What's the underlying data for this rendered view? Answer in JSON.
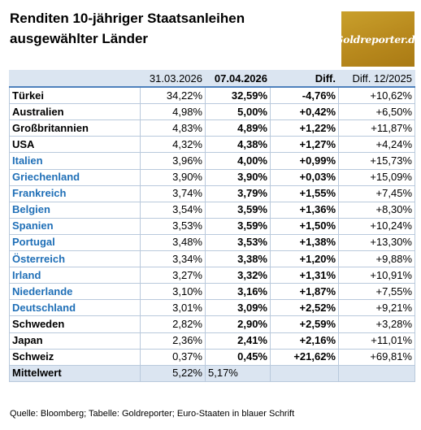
{
  "title_line1": "Renditen 10-jähriger Staatsanleihen",
  "title_line2": "ausgewählter Länder",
  "logo_text": "Goldreporter.de",
  "colors": {
    "euro": "#1f6fb7",
    "header_bg": "#dbe5f1",
    "header_rule": "#4f81bd",
    "logo_gold": "#b8891d"
  },
  "header": {
    "country": "",
    "date1": "31.03.2026",
    "date2": "07.04.2026",
    "diff": "Diff.",
    "diff2": "Diff. 12/2025"
  },
  "rows": [
    {
      "name": "Türkei",
      "v1": "34,22%",
      "v2": "32,59%",
      "diff": "-4,76%",
      "diff2": "+10,62%"
    },
    {
      "name": "Australien",
      "v1": "4,98%",
      "v2": "5,00%",
      "diff": "+0,42%",
      "diff2": "+6,50%"
    },
    {
      "name": "Großbritannien",
      "v1": "4,83%",
      "v2": "4,89%",
      "diff": "+1,22%",
      "diff2": "+11,87%"
    },
    {
      "name": "USA",
      "v1": "4,32%",
      "v2": "4,38%",
      "diff": "+1,27%",
      "diff2": "+4,24%"
    },
    {
      "name": "Italien",
      "v1": "3,96%",
      "v2": "4,00%",
      "diff": "+0,99%",
      "diff2": "+15,73%"
    },
    {
      "name": "Griechenland",
      "v1": "3,90%",
      "v2": "3,90%",
      "diff": "+0,03%",
      "diff2": "+15,09%"
    },
    {
      "name": "Frankreich",
      "v1": "3,74%",
      "v2": "3,79%",
      "diff": "+1,55%",
      "diff2": "+7,45%"
    },
    {
      "name": "Belgien",
      "v1": "3,54%",
      "v2": "3,59%",
      "diff": "+1,36%",
      "diff2": "+8,30%"
    },
    {
      "name": "Spanien",
      "v1": "3,53%",
      "v2": "3,59%",
      "diff": "+1,50%",
      "diff2": "+10,24%"
    },
    {
      "name": "Portugal",
      "v1": "3,48%",
      "v2": "3,53%",
      "diff": "+1,38%",
      "diff2": "+13,30%"
    },
    {
      "name": "Österreich",
      "v1": "3,34%",
      "v2": "3,38%",
      "diff": "+1,20%",
      "diff2": "+9,88%"
    },
    {
      "name": "Irland",
      "v1": "3,27%",
      "v2": "3,32%",
      "diff": "+1,31%",
      "diff2": "+10,91%"
    },
    {
      "name": "Niederlande",
      "v1": "3,10%",
      "v2": "3,16%",
      "diff": "+1,87%",
      "diff2": "+7,55%"
    },
    {
      "name": "Deutschland",
      "v1": "3,01%",
      "v2": "3,09%",
      "diff": "+2,52%",
      "diff2": "+9,21%"
    },
    {
      "name": "Schweden",
      "v1": "2,82%",
      "v2": "2,90%",
      "diff": "+2,59%",
      "diff2": "+3,28%"
    },
    {
      "name": "Japan",
      "v1": "2,36%",
      "v2": "2,41%",
      "diff": "+2,16%",
      "diff2": "+11,01%"
    },
    {
      "name": "Schweiz",
      "v1": "0,37%",
      "v2": "0,45%",
      "diff": "+21,62%",
      "diff2": "+69,81%"
    }
  ],
  "footer": {
    "label": "Mittelwert",
    "v1": "5,22%",
    "v2": "5,17%"
  },
  "source": "Quelle: Bloomberg; Tabelle: Goldreporter; Euro-Staaten in blauer Schrift"
}
